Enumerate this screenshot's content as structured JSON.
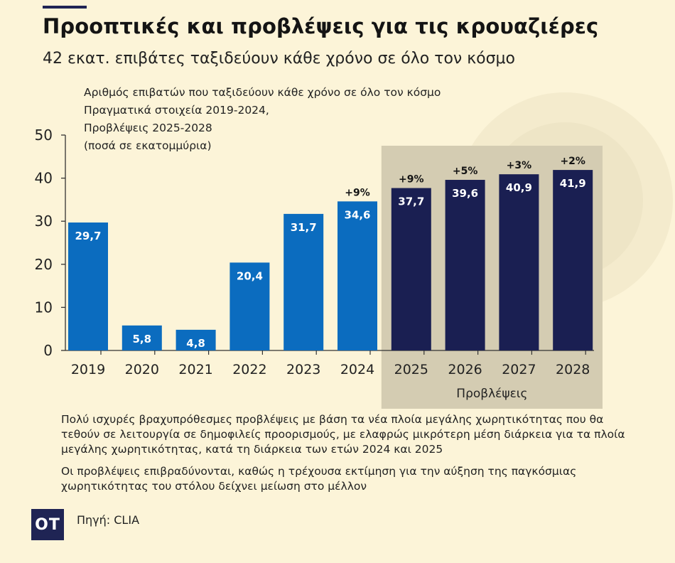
{
  "title": "Προοπτικές και προβλέψεις για τις κρουαζιέρες",
  "subtitle": "42 εκατ. επιβάτες ταξιδεύουν κάθε χρόνο σε όλο τον κόσμο",
  "chart_description": [
    "Αριθμός επιβατών που ταξιδεύουν κάθε χρόνο σε όλο τον κόσμο",
    "Πραγματικά στοιχεία 2019-2024,",
    "Προβλέψεις 2025-2028",
    "(ποσά σε εκατομμύρια)"
  ],
  "chart_data": {
    "type": "bar",
    "categories": [
      "2019",
      "2020",
      "2021",
      "2022",
      "2023",
      "2024",
      "2025",
      "2026",
      "2027",
      "2028"
    ],
    "values": [
      29.7,
      5.8,
      4.8,
      20.4,
      31.7,
      34.6,
      37.7,
      39.6,
      40.9,
      41.9
    ],
    "value_labels": [
      "29,7",
      "5,8",
      "4,8",
      "20,4",
      "31,7",
      "34,6",
      "37,7",
      "39,6",
      "40,9",
      "41,9"
    ],
    "growth_labels": [
      "",
      "",
      "",
      "",
      "",
      "+9%",
      "+9%",
      "+5%",
      "+3%",
      "+2%"
    ],
    "forecast_start_index": 6,
    "forecast_label": "Προβλέψεις",
    "ylim": [
      0,
      50
    ],
    "yticks": [
      0,
      10,
      20,
      30,
      40,
      50
    ],
    "grid": false,
    "colors": {
      "actual": "#0b6cbf",
      "forecast": "#1a1f52",
      "forecast_band": "#d4ccb2",
      "glow": "#ece3c4"
    }
  },
  "notes": [
    "Πολύ ισχυρές βραχυπρόθεσμες προβλέψεις με βάση τα νέα πλοία μεγάλης χωρητικότητας που θα τεθούν σε λειτουργία σε δημοφιλείς προορισμούς, με ελαφρώς μικρότερη μέση διάρκεια για τα πλοία μεγάλης χωρητικότητας, κατά τη διάρκεια των ετών 2024 και 2025",
    "Οι προβλέψεις επιβραδύνονται, καθώς η τρέχουσα εκτίμηση για την αύξηση της παγκόσμιας χωρητικότητας του στόλου δείχνει μείωση στο μέλλον"
  ],
  "logo_text": "OT",
  "source": "Πηγή: CLIA"
}
